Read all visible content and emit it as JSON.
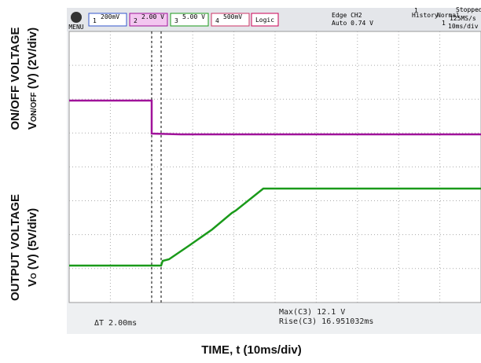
{
  "left_labels": {
    "top": {
      "line1": "ON/OFF VOLTAGE",
      "symbol": "V",
      "subscript": "ON/OFF",
      "rest": " (V) (2V/div)"
    },
    "bottom": {
      "line1": "OUTPUT VOLTAGE",
      "symbol": "V",
      "subscript": "O",
      "rest": " (V)  (5V/div)"
    }
  },
  "x_label": "TIME, t (10ms/div)",
  "toolbar": {
    "menu": "MENU",
    "channels": [
      {
        "num": "1",
        "scale": "200mV"
      },
      {
        "num": "2",
        "scale": "2.00 V"
      },
      {
        "num": "3",
        "scale": "5.00 V"
      },
      {
        "num": "4",
        "scale": "500mV"
      }
    ],
    "logic": "Logic",
    "trigger": [
      "Edge CH2",
      "Auto 0.74 V"
    ],
    "history": "History",
    "history_num": "1",
    "mode": "Normal",
    "mode_num": "1",
    "status": "Stopped",
    "rate": "125MS/s",
    "timebase": "10ms/div"
  },
  "readouts": {
    "delta_t": "ΔT  2.00ms",
    "max": "Max(C3)  12.1 V",
    "rise": "Rise(C3)  16.951032ms"
  }
}
